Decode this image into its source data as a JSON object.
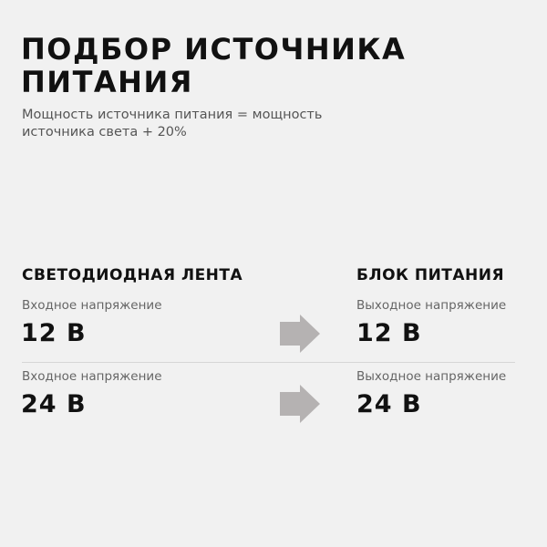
{
  "title_lines": [
    "ПОДБОР ИСТОЧНИКА",
    "ПИТАНИЯ"
  ],
  "subtitle": "Мощность источника питания = мощность источника света + 20%",
  "columns": {
    "left_header": "СВЕТОДИОДНАЯ ЛЕНТА",
    "right_header": "БЛОК ПИТАНИЯ"
  },
  "rows": [
    {
      "left_label": "Входное напряжение",
      "left_value": "12 В",
      "right_label": "Выходное напряжение",
      "right_value": "12 В"
    },
    {
      "left_label": "Входное напряжение",
      "left_value": "24 В",
      "right_label": "Выходное напряжение",
      "right_value": "24 В"
    }
  ],
  "icons": {
    "arrow": "arrow-right-icon"
  },
  "colors": {
    "background": "#f1f1f1",
    "arrow": "#b5b2b2",
    "text": "#111111"
  }
}
